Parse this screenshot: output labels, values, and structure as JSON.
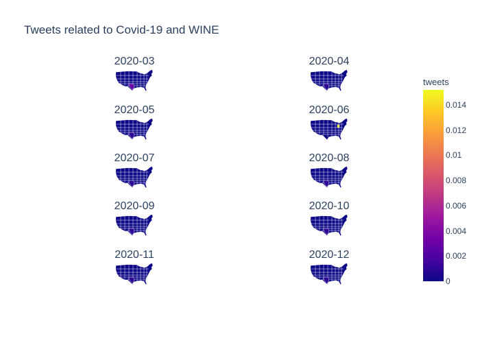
{
  "chart_data": {
    "type": "choropleth",
    "title": "Tweets related to Covid-19 and WINE",
    "region": "USA states",
    "panels": [
      {
        "label": "2020-03",
        "max_value": 0.003,
        "hotspot": "Texas"
      },
      {
        "label": "2020-04",
        "max_value": 0.001,
        "hotspot": "Texas"
      },
      {
        "label": "2020-05",
        "max_value": 0.001,
        "hotspot": "Texas"
      },
      {
        "label": "2020-06",
        "max_value": 0.015,
        "hotspot": "Ohio"
      },
      {
        "label": "2020-07",
        "max_value": 0.001,
        "hotspot": "Texas"
      },
      {
        "label": "2020-08",
        "max_value": 0.001,
        "hotspot": "Texas"
      },
      {
        "label": "2020-09",
        "max_value": 0.001,
        "hotspot": "Texas"
      },
      {
        "label": "2020-10",
        "max_value": 0.001,
        "hotspot": "Texas"
      },
      {
        "label": "2020-11",
        "max_value": 0.001,
        "hotspot": "Texas"
      },
      {
        "label": "2020-12",
        "max_value": 0.001,
        "hotspot": "Texas"
      }
    ],
    "colorbar": {
      "title": "tweets",
      "range": [
        0,
        0.0152
      ],
      "ticks": [
        0,
        0.002,
        0.004,
        0.006,
        0.008,
        0.01,
        0.012,
        0.014
      ],
      "tick_labels": [
        "0",
        "0.002",
        "0.004",
        "0.006",
        "0.008",
        "0.01",
        "0.012",
        "0.014"
      ],
      "colorscale": [
        "#0d0887",
        "#46039f",
        "#7201a8",
        "#9c179e",
        "#bd3786",
        "#d8576b",
        "#ed7953",
        "#fb9f3a",
        "#fdca26",
        "#f0f921"
      ]
    }
  }
}
